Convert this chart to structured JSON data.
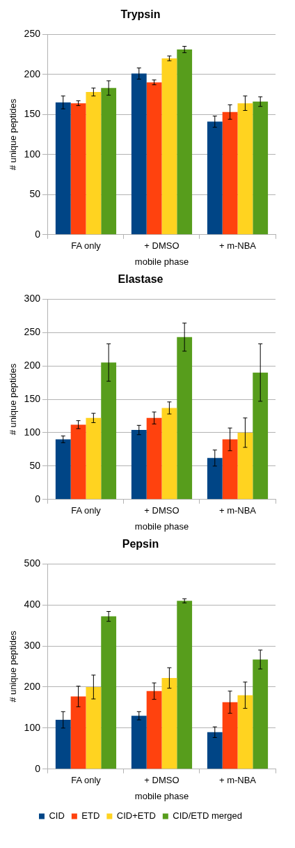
{
  "chart_data": [
    {
      "type": "bar",
      "title": "Trypsin",
      "xlabel": "mobile phase",
      "ylabel": "# unique peptides",
      "categories": [
        "FA only",
        "+ DMSO",
        "+ m-NBA"
      ],
      "ylim": [
        0,
        250
      ],
      "yticks": [
        0,
        50,
        100,
        150,
        200,
        250
      ],
      "grid": "y",
      "legend": false,
      "series": [
        {
          "color": "#004586",
          "values": [
            165,
            201,
            141
          ],
          "errors": [
            8,
            7,
            7
          ]
        },
        {
          "color": "#ff420e",
          "values": [
            164,
            190,
            153
          ],
          "errors": [
            3,
            3,
            9
          ]
        },
        {
          "color": "#ffd320",
          "values": [
            178,
            220,
            164
          ],
          "errors": [
            5,
            3,
            9
          ]
        },
        {
          "color": "#579d1c",
          "values": [
            183,
            231,
            166
          ],
          "errors": [
            9,
            4,
            6
          ]
        }
      ]
    },
    {
      "type": "bar",
      "title": "Elastase",
      "xlabel": "mobile phase",
      "ylabel": "# unique peptides",
      "categories": [
        "FA only",
        "+ DMSO",
        "+ m-NBA"
      ],
      "ylim": [
        0,
        300
      ],
      "yticks": [
        0,
        50,
        100,
        150,
        200,
        250,
        300
      ],
      "grid": "y",
      "legend": false,
      "series": [
        {
          "color": "#004586",
          "values": [
            90,
            104,
            62
          ],
          "errors": [
            5,
            7,
            12
          ]
        },
        {
          "color": "#ff420e",
          "values": [
            112,
            122,
            90
          ],
          "errors": [
            6,
            9,
            17
          ]
        },
        {
          "color": "#ffd320",
          "values": [
            122,
            137,
            100
          ],
          "errors": [
            7,
            9,
            22
          ]
        },
        {
          "color": "#579d1c",
          "values": [
            205,
            243,
            190
          ],
          "errors": [
            28,
            21,
            43
          ]
        }
      ]
    },
    {
      "type": "bar",
      "title": "Pepsin",
      "xlabel": "mobile phase",
      "ylabel": "# unique peptides",
      "categories": [
        "FA only",
        "+ DMSO",
        "+ m-NBA"
      ],
      "ylim": [
        0,
        500
      ],
      "yticks": [
        0,
        100,
        200,
        300,
        400,
        500
      ],
      "grid": "y",
      "legend": "bottom",
      "series": [
        {
          "name": "CID",
          "color": "#004586",
          "values": [
            120,
            130,
            90
          ],
          "errors": [
            20,
            10,
            13
          ]
        },
        {
          "name": "ETD",
          "color": "#ff420e",
          "values": [
            177,
            190,
            163
          ],
          "errors": [
            25,
            20,
            27
          ]
        },
        {
          "name": "CID+ETD",
          "color": "#ffd320",
          "values": [
            200,
            222,
            180
          ],
          "errors": [
            29,
            25,
            32
          ]
        },
        {
          "name": "CID/ETD merged",
          "color": "#579d1c",
          "values": [
            372,
            410,
            267
          ],
          "errors": [
            12,
            5,
            23
          ]
        }
      ]
    }
  ]
}
